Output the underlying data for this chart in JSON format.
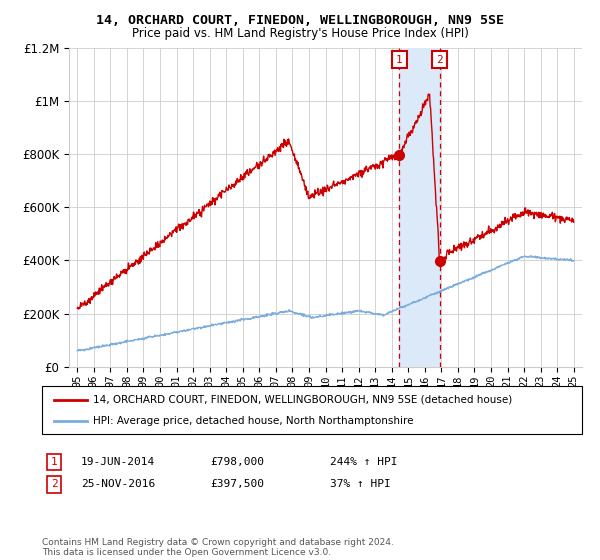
{
  "title": "14, ORCHARD COURT, FINEDON, WELLINGBOROUGH, NN9 5SE",
  "subtitle": "Price paid vs. HM Land Registry's House Price Index (HPI)",
  "red_label": "14, ORCHARD COURT, FINEDON, WELLINGBOROUGH, NN9 5SE (detached house)",
  "blue_label": "HPI: Average price, detached house, North Northamptonshire",
  "footer": "Contains HM Land Registry data © Crown copyright and database right 2024.\nThis data is licensed under the Open Government Licence v3.0.",
  "transaction1": {
    "label": "1",
    "date": "19-JUN-2014",
    "price": "£798,000",
    "hpi": "244% ↑ HPI",
    "x": 2014.46,
    "value": 798000
  },
  "transaction2": {
    "label": "2",
    "date": "25-NOV-2016",
    "price": "£397,500",
    "hpi": "37% ↑ HPI",
    "x": 2016.9,
    "value": 397500
  },
  "shade_x1": 2014.46,
  "shade_x2": 2016.9,
  "ylim": [
    0,
    1200000
  ],
  "yticks": [
    0,
    200000,
    400000,
    600000,
    800000,
    1000000,
    1200000
  ],
  "xlim": [
    1994.5,
    2025.5
  ],
  "red_color": "#cc0000",
  "blue_color": "#7aacdc",
  "shade_color": "#dce9f8",
  "grid_color": "#cccccc",
  "bg_color": "#ffffff"
}
